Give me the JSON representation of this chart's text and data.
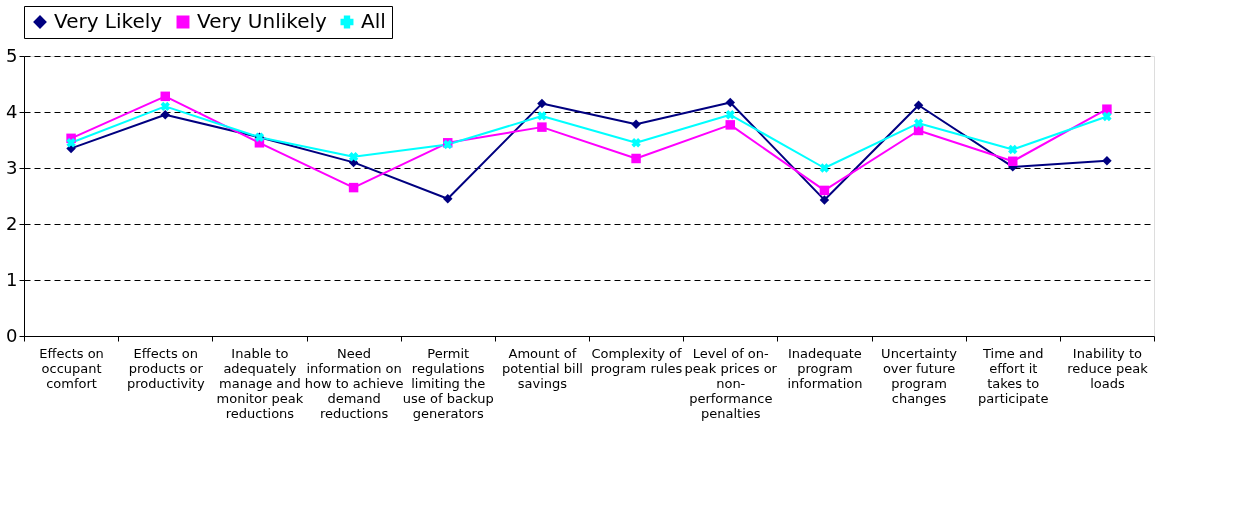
{
  "chart_data": {
    "type": "line",
    "categories": [
      "Effects on occupant comfort",
      "Effects on products or productivity",
      "Inable to adequately manage and monitor peak reductions",
      "Need information on how to achieve demand reductions",
      "Permit regulations limiting the use of backup generators",
      "Amount of potential bill savings",
      "Complexity of program rules",
      "Level of on-peak prices or non-performance penalties",
      "Inadequate program information",
      "Uncertainty over future program changes",
      "Time and effort it takes to participate",
      "Inability to reduce peak loads"
    ],
    "series": [
      {
        "name": "Very Likely",
        "color": "#000080",
        "marker": "diamond",
        "values": [
          3.35,
          3.95,
          3.55,
          3.1,
          2.45,
          4.15,
          3.78,
          4.17,
          2.43,
          4.12,
          3.02,
          3.13
        ]
      },
      {
        "name": "Very Unlikely",
        "color": "#ff00ff",
        "marker": "square",
        "values": [
          3.53,
          4.28,
          3.45,
          2.65,
          3.45,
          3.73,
          3.17,
          3.77,
          2.6,
          3.67,
          3.12,
          4.05
        ]
      },
      {
        "name": "All",
        "color": "#00ffff",
        "marker": "cross",
        "values": [
          3.45,
          4.1,
          3.55,
          3.2,
          3.42,
          3.93,
          3.45,
          3.95,
          3.0,
          3.8,
          3.33,
          3.92
        ]
      }
    ],
    "ylim": [
      0,
      5
    ],
    "yticks": [
      0,
      1,
      2,
      3,
      4,
      5
    ],
    "grid": "y",
    "legend": "top",
    "line_style": "solid"
  }
}
